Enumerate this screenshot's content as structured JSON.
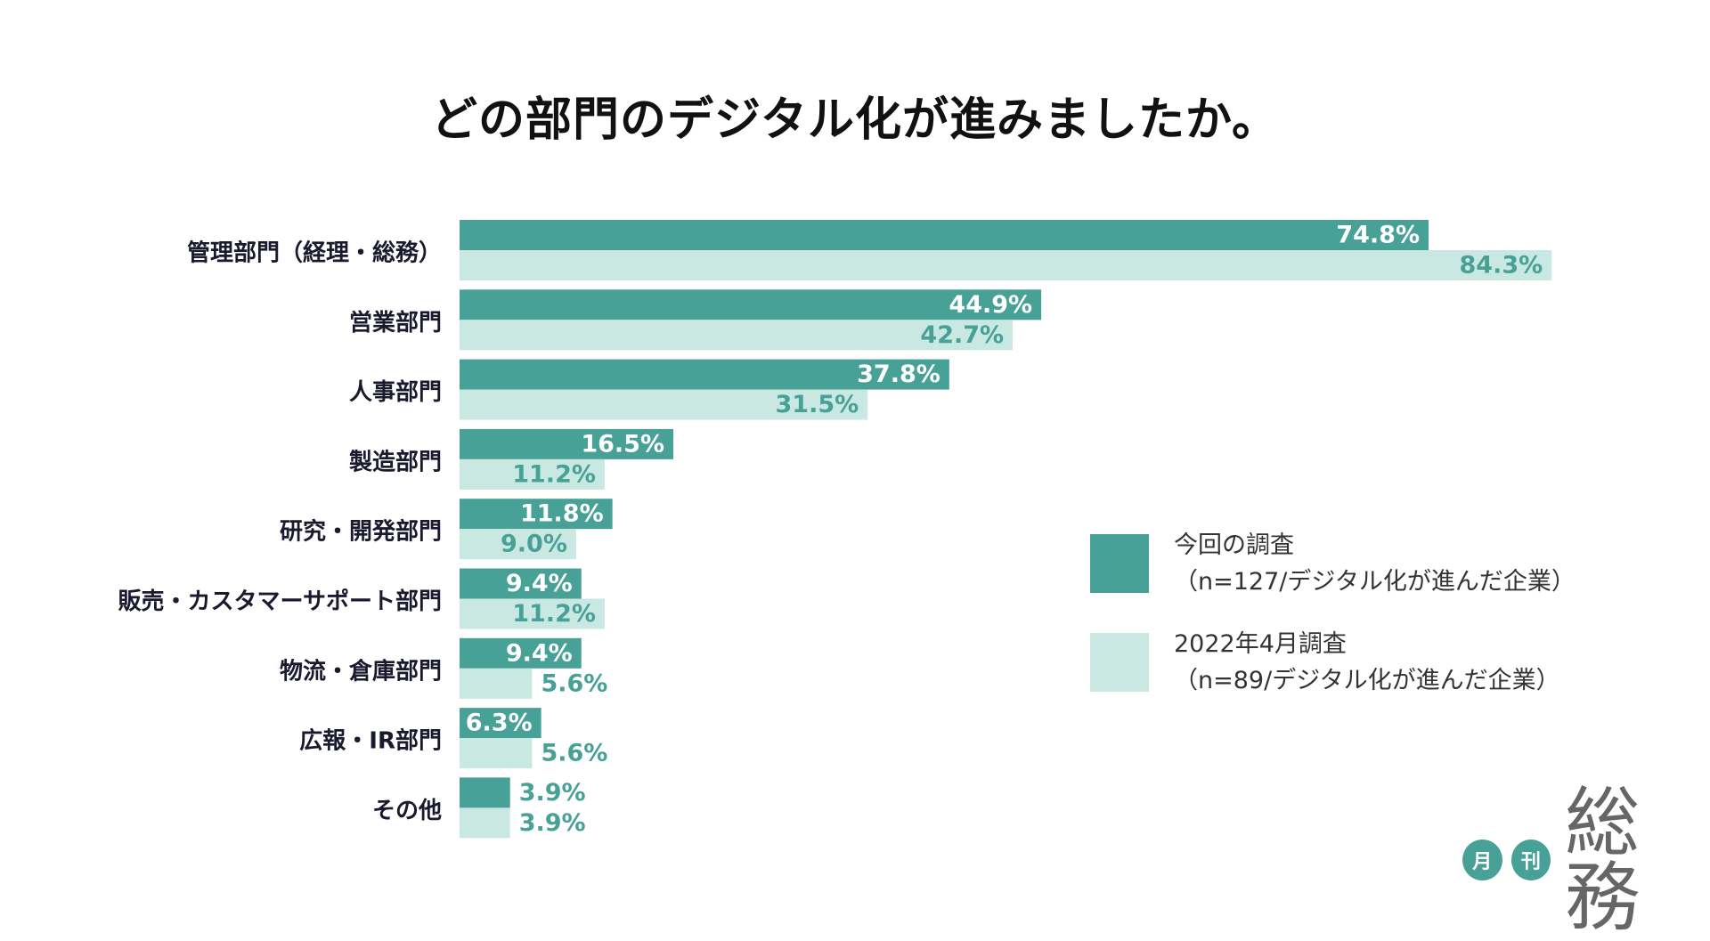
{
  "title": "どの部門のデジタル化が進みましたか。",
  "colors": {
    "current": "#48a197",
    "previous": "#c9e8e2",
    "value_on_dark": "#ffffff",
    "value_on_light": "#48a197",
    "category_label": "#1a1a2e"
  },
  "chart_data": {
    "type": "bar",
    "orientation": "horizontal",
    "title": "どの部門のデジタル化が進みましたか。",
    "xlim": [
      0,
      100
    ],
    "unit": "%",
    "categories": [
      "管理部門（経理・総務）",
      "営業部門",
      "人事部門",
      "製造部門",
      "研究・開発部門",
      "販売・カスタマーサポート部門",
      "物流・倉庫部門",
      "広報・IR部門",
      "その他"
    ],
    "series": [
      {
        "name": "今回の調査",
        "name_detail": "（n=127/デジタル化が進んだ企業）",
        "values": [
          74.8,
          44.9,
          37.8,
          16.5,
          11.8,
          9.4,
          9.4,
          6.3,
          3.9
        ],
        "labels": [
          "74.8%",
          "44.9%",
          "37.8%",
          "16.5%",
          "11.8%",
          "9.4%",
          "9.4%",
          "6.3%",
          "3.9%"
        ]
      },
      {
        "name": "2022年4月調査",
        "name_detail": "（n=89/デジタル化が進んだ企業）",
        "values": [
          84.3,
          42.7,
          31.5,
          11.2,
          9.0,
          11.2,
          5.6,
          5.6,
          3.9
        ],
        "labels": [
          "84.3%",
          "42.7%",
          "31.5%",
          "11.2%",
          "9.0%",
          "11.2%",
          "5.6%",
          "5.6%",
          "3.9%"
        ]
      }
    ],
    "legend_position": "right"
  },
  "logo": {
    "circle_1": "月",
    "circle_2": "刊",
    "text": "総務"
  }
}
